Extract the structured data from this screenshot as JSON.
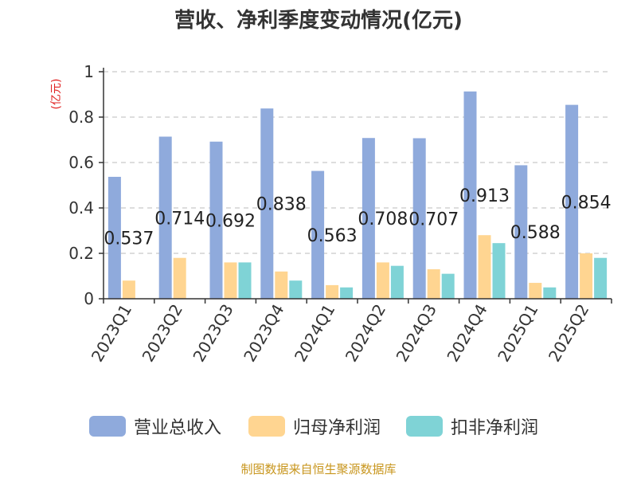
{
  "chart_data": {
    "type": "bar",
    "title": "营收、净利季度变动情况(亿元)",
    "unit_label": "(亿元)",
    "categories": [
      "2023Q1",
      "2023Q2",
      "2023Q3",
      "2023Q4",
      "2024Q1",
      "2024Q2",
      "2024Q3",
      "2024Q4",
      "2025Q1",
      "2025Q2"
    ],
    "series": [
      {
        "name": "营业总收入",
        "color": "#8faadc",
        "values": [
          0.537,
          0.714,
          0.692,
          0.838,
          0.563,
          0.708,
          0.707,
          0.913,
          0.588,
          0.854
        ],
        "labels": [
          "0.537",
          "0.714",
          "0.692",
          "0.838",
          "0.563",
          "0.708",
          "0.707",
          "0.913",
          "0.588",
          "0.854"
        ]
      },
      {
        "name": "归母净利润",
        "color": "#ffd591",
        "values": [
          0.08,
          0.18,
          0.16,
          0.12,
          0.06,
          0.16,
          0.13,
          0.28,
          0.07,
          0.2
        ]
      },
      {
        "name": "扣非净利润",
        "color": "#7fd3d6",
        "values": [
          0,
          0,
          0.16,
          0.08,
          0.05,
          0.145,
          0.11,
          0.245,
          0.05,
          0.18
        ]
      }
    ],
    "ylim": [
      0,
      1
    ],
    "yticks": [
      "0",
      "0.2",
      "0.4",
      "0.6",
      "0.8",
      "1"
    ],
    "grid": true,
    "legend_position": "bottom"
  },
  "source": "制图数据来自恒生聚源数据库"
}
